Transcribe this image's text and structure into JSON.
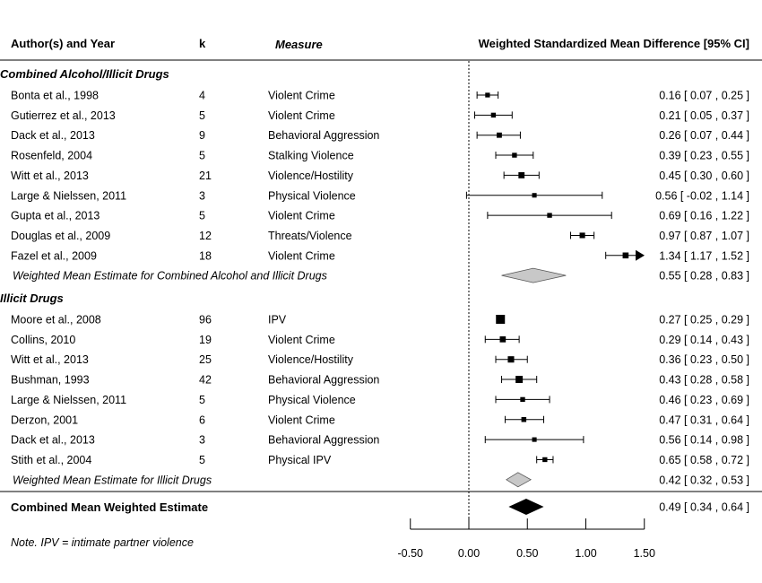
{
  "header": {
    "author_label": "Author(s) and Year",
    "k_label": "k",
    "measure_label": "Measure",
    "estimate_label": "Weighted Standardized Mean Difference [95% CI]"
  },
  "note": "Note. IPV = intimate partner violence",
  "chart_data": {
    "type": "forest",
    "x_ticks": [
      -0.5,
      0,
      0.5,
      1,
      1.5
    ],
    "x_tick_labels": [
      "-0.50",
      "0.00",
      "0.50",
      "1.00",
      "1.50"
    ],
    "xlim": [
      -0.5,
      1.5
    ],
    "reference_line": 0,
    "groups": [
      {
        "name": "Combined Alcohol/Illicit Drugs",
        "studies": [
          {
            "author": "Bonta et al., 1998",
            "k": "4",
            "measure": "Violent Crime",
            "est": 0.16,
            "lo": 0.07,
            "hi": 0.25,
            "label": "0.16 [  0.07 , 0.25 ]"
          },
          {
            "author": "Gutierrez et al., 2013",
            "k": "5",
            "measure": "Violent Crime",
            "est": 0.21,
            "lo": 0.05,
            "hi": 0.37,
            "label": "0.21 [  0.05 , 0.37 ]"
          },
          {
            "author": "Dack et al., 2013",
            "k": "9",
            "measure": "Behavioral Aggression",
            "est": 0.26,
            "lo": 0.07,
            "hi": 0.44,
            "label": "0.26 [  0.07 , 0.44 ]"
          },
          {
            "author": "Rosenfeld, 2004",
            "k": "5",
            "measure": "Stalking Violence",
            "est": 0.39,
            "lo": 0.23,
            "hi": 0.55,
            "label": "0.39 [  0.23 , 0.55 ]"
          },
          {
            "author": "Witt et al., 2013",
            "k": "21",
            "measure": "Violence/Hostility",
            "est": 0.45,
            "lo": 0.3,
            "hi": 0.6,
            "label": "0.45 [  0.30 , 0.60 ]"
          },
          {
            "author": "Large & Nielssen, 2011",
            "k": "3",
            "measure": "Physical Violence",
            "est": 0.56,
            "lo": -0.02,
            "hi": 1.14,
            "label": "0.56 [ -0.02 , 1.14 ]"
          },
          {
            "author": "Gupta et al., 2013",
            "k": "5",
            "measure": "Violent Crime",
            "est": 0.69,
            "lo": 0.16,
            "hi": 1.22,
            "label": "0.69 [  0.16 , 1.22 ]"
          },
          {
            "author": "Douglas et al., 2009",
            "k": "12",
            "measure": "Threats/Violence",
            "est": 0.97,
            "lo": 0.87,
            "hi": 1.07,
            "label": "0.97 [  0.87 , 1.07 ]"
          },
          {
            "author": "Fazel et al., 2009",
            "k": "18",
            "measure": "Violent Crime",
            "est": 1.34,
            "lo": 1.17,
            "hi": 1.52,
            "label": "1.34 [  1.17 , 1.52 ]"
          }
        ],
        "summary": {
          "label_text": "Weighted Mean Estimate for Combined Alcohol and Illicit Drugs",
          "est": 0.55,
          "lo": 0.28,
          "hi": 0.83,
          "label": "0.55 [  0.28 , 0.83 ]"
        }
      },
      {
        "name": "Illicit Drugs",
        "studies": [
          {
            "author": "Moore et al., 2008",
            "k": "96",
            "measure": "IPV",
            "est": 0.27,
            "lo": 0.25,
            "hi": 0.29,
            "label": "0.27 [  0.25 , 0.29 ]"
          },
          {
            "author": "Collins, 2010",
            "k": "19",
            "measure": "Violent Crime",
            "est": 0.29,
            "lo": 0.14,
            "hi": 0.43,
            "label": "0.29 [  0.14 , 0.43 ]"
          },
          {
            "author": "Witt et al., 2013",
            "k": "25",
            "measure": "Violence/Hostility",
            "est": 0.36,
            "lo": 0.23,
            "hi": 0.5,
            "label": "0.36 [  0.23 , 0.50 ]"
          },
          {
            "author": "Bushman, 1993",
            "k": "42",
            "measure": "Behavioral Aggression",
            "est": 0.43,
            "lo": 0.28,
            "hi": 0.58,
            "label": "0.43 [  0.28 , 0.58 ]"
          },
          {
            "author": "Large & Nielssen, 2011",
            "k": "5",
            "measure": "Physical Violence",
            "est": 0.46,
            "lo": 0.23,
            "hi": 0.69,
            "label": "0.46 [  0.23 , 0.69 ]"
          },
          {
            "author": "Derzon, 2001",
            "k": "6",
            "measure": "Violent Crime",
            "est": 0.47,
            "lo": 0.31,
            "hi": 0.64,
            "label": "0.47 [  0.31 , 0.64 ]"
          },
          {
            "author": "Dack et al., 2013",
            "k": "3",
            "measure": "Behavioral Aggression",
            "est": 0.56,
            "lo": 0.14,
            "hi": 0.98,
            "label": "0.56 [  0.14 , 0.98 ]"
          },
          {
            "author": "Stith et al., 2004",
            "k": "5",
            "measure": "Physical IPV",
            "est": 0.65,
            "lo": 0.58,
            "hi": 0.72,
            "label": "0.65 [  0.58 , 0.72 ]"
          }
        ],
        "summary": {
          "label_text": "Weighted Mean Estimate for Illicit Drugs",
          "est": 0.42,
          "lo": 0.32,
          "hi": 0.53,
          "label": "0.42 [  0.32 , 0.53 ]"
        }
      }
    ],
    "overall": {
      "label_text": "Combined Mean Weighted Estimate",
      "est": 0.49,
      "lo": 0.34,
      "hi": 0.64,
      "label": "0.49 [  0.34 , 0.64 ]"
    },
    "colors": {
      "group_summary": "#c8c8c8",
      "overall_summary": "#000000"
    }
  }
}
